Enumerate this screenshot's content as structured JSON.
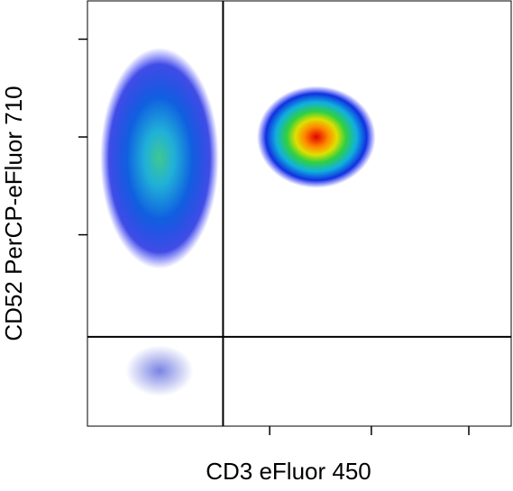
{
  "chart_data": {
    "type": "density",
    "x_label": "CD3 eFluor 450",
    "y_label": "CD52 PerCP-eFluor 710",
    "xlim": [
      0,
      100
    ],
    "ylim": [
      0,
      100
    ],
    "xticks": [
      43,
      67,
      90
    ],
    "yticks": [
      45,
      68,
      91
    ],
    "gate_x": 32,
    "gate_y": 21,
    "populations": [
      {
        "x": 17,
        "y": 63,
        "sx": 7,
        "sy": 13,
        "gradient": "cool"
      },
      {
        "x": 54,
        "y": 68,
        "sx": 7,
        "sy": 6,
        "gradient": "hot"
      },
      {
        "x": 17,
        "y": 13,
        "sx": 4,
        "sy": 3,
        "gradient": "sparse"
      }
    ]
  }
}
